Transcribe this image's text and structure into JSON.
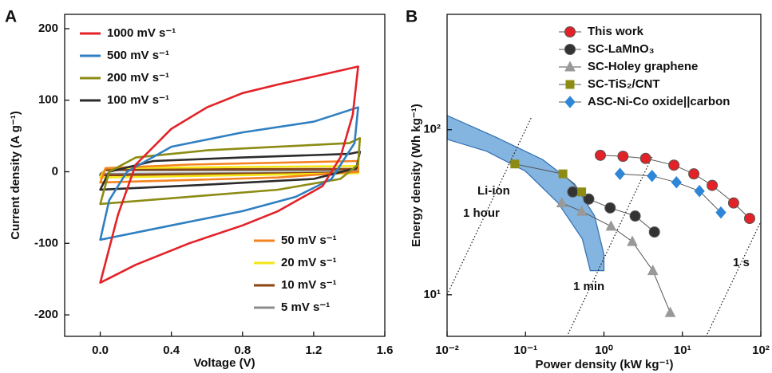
{
  "chart_data": [
    {
      "type": "line",
      "panel_label": "A",
      "xlabel": "Voltage (V)",
      "ylabel": "Current density (A g⁻¹)",
      "xlim": [
        -0.2,
        1.6
      ],
      "ylim": [
        -230,
        220
      ],
      "xticks": [
        {
          "value": 0,
          "label": "0.0"
        },
        0.4,
        0.8,
        1.2,
        1.6
      ],
      "yticks": [
        -200,
        -100,
        0,
        100,
        200
      ],
      "series": [
        {
          "name": "1000 mV s⁻¹",
          "color": "#e32228",
          "x": [
            0,
            0.1,
            0.2,
            0.4,
            0.6,
            0.8,
            1.0,
            1.2,
            1.45,
            1.42,
            1.35,
            1.25,
            1.0,
            0.8,
            0.5,
            0.2
          ],
          "values": [
            -155,
            -60,
            10,
            60,
            90,
            110,
            122,
            133,
            147,
            80,
            20,
            -20,
            -55,
            -75,
            -100,
            -130
          ]
        },
        {
          "name": "500 mV s⁻¹",
          "color": "#2f7fc1",
          "x": [
            0,
            0.05,
            0.15,
            0.4,
            0.8,
            1.2,
            1.45,
            1.43,
            1.3,
            1.1,
            0.8,
            0.4
          ],
          "values": [
            -95,
            -40,
            0,
            35,
            55,
            70,
            90,
            40,
            -10,
            -35,
            -55,
            -75
          ]
        },
        {
          "name": "200 mV s⁻¹",
          "color": "#8c8c14",
          "x": [
            0,
            0.05,
            0.2,
            0.6,
            1.0,
            1.4,
            1.46,
            1.45,
            1.35,
            1.0,
            0.5
          ],
          "values": [
            -45,
            0,
            20,
            30,
            35,
            40,
            47,
            10,
            -10,
            -25,
            -35
          ]
        },
        {
          "name": "100 mV s⁻¹",
          "color": "#2b2b2b",
          "x": [
            0,
            0.05,
            0.3,
            0.8,
            1.4,
            1.46,
            1.44,
            1.2,
            0.6
          ],
          "values": [
            -25,
            0,
            15,
            20,
            25,
            28,
            5,
            -10,
            -18
          ]
        },
        {
          "name": "50 mV s⁻¹",
          "color": "#f58220",
          "x": [
            0,
            0.03,
            0.5,
            1.45,
            1.45,
            1.0
          ],
          "values": [
            -15,
            5,
            10,
            15,
            0,
            -8
          ]
        },
        {
          "name": "20 mV s⁻¹",
          "color": "#f5e616",
          "x": [
            0,
            0.03,
            1.45,
            1.45
          ],
          "values": [
            -8,
            5,
            8,
            -2
          ]
        },
        {
          "name": "10 mV s⁻¹",
          "color": "#8b4513",
          "x": [
            0,
            0.03,
            1.45,
            1.45
          ],
          "values": [
            -5,
            3,
            4,
            -1
          ]
        },
        {
          "name": "5 mV s⁻¹",
          "color": "#8c8c8c",
          "x": [
            0,
            0.03,
            1.45,
            1.45
          ],
          "values": [
            -3,
            2,
            2,
            -1
          ]
        }
      ]
    },
    {
      "type": "scatter",
      "panel_label": "B",
      "xlabel": "Power density (kW kg⁻¹)",
      "ylabel": "Energy density (Wh kg⁻¹)",
      "xscale": "log",
      "yscale": "log",
      "xlim": [
        0.01,
        100
      ],
      "ylim": [
        5.6,
        500
      ],
      "xticks": [
        {
          "value": 0.01,
          "label": "10⁻²"
        },
        {
          "value": 0.1,
          "label": "10⁻¹"
        },
        {
          "value": 1,
          "label": "10⁰"
        },
        {
          "value": 10,
          "label": "10¹"
        },
        {
          "value": 100,
          "label": "10²"
        }
      ],
      "yticks": [
        {
          "value": 10,
          "label": "10¹"
        },
        {
          "value": 100,
          "label": "10²"
        }
      ],
      "regions": [
        {
          "name": "Li-ion",
          "color": "#5b9bd5",
          "x": [
            0.01,
            0.041,
            0.165,
            0.42,
            0.76,
            1.0,
            1.0,
            0.67,
            0.53,
            0.26,
            0.1,
            0.032,
            0.01
          ],
          "y": [
            122,
            90.5,
            66,
            47,
            30,
            17.5,
            14,
            14,
            21.8,
            36,
            56,
            74,
            87.5
          ]
        }
      ],
      "reference_lines": [
        {
          "label": "1 hour",
          "x": [
            0.01,
            0.12
          ],
          "y": [
            10,
            120
          ]
        },
        {
          "label": "1 min",
          "x": [
            0.35,
            4.2
          ],
          "y": [
            5.8,
            70
          ]
        },
        {
          "label": "1 s",
          "x": [
            20,
            100
          ],
          "y": [
            5.56,
            27.8
          ]
        }
      ],
      "series": [
        {
          "name": "This work",
          "color": "#e32228",
          "marker": "circle",
          "x": [
            0.9,
            1.75,
            3.4,
            7.8,
            14,
            24,
            45,
            72
          ],
          "values": [
            70,
            69,
            67,
            61,
            54,
            46,
            36,
            29
          ]
        },
        {
          "name": "SC-LaMnO₃",
          "color": "#333333",
          "marker": "circle",
          "x": [
            0.4,
            0.64,
            1.2,
            2.5,
            4.4
          ],
          "values": [
            42,
            38,
            33.6,
            30,
            24
          ]
        },
        {
          "name": "SC-Holey graphene",
          "color": "#999999",
          "marker": "triangle",
          "x": [
            0.29,
            0.52,
            1.23,
            2.3,
            4.2,
            7.0
          ],
          "values": [
            36,
            32,
            26,
            21,
            14,
            7.8
          ]
        },
        {
          "name": "SC-TiS₂/CNT",
          "color": "#8c8c14",
          "marker": "square",
          "x": [
            0.073,
            0.3,
            0.52
          ],
          "values": [
            62,
            54,
            42
          ]
        },
        {
          "name": "ASC-Ni-Co oxide||carbon",
          "color": "#2f86d6",
          "marker": "diamond",
          "x": [
            1.6,
            4.1,
            8.4,
            16.5,
            31
          ],
          "values": [
            54,
            52.5,
            48,
            42.5,
            31.5
          ]
        }
      ]
    }
  ]
}
